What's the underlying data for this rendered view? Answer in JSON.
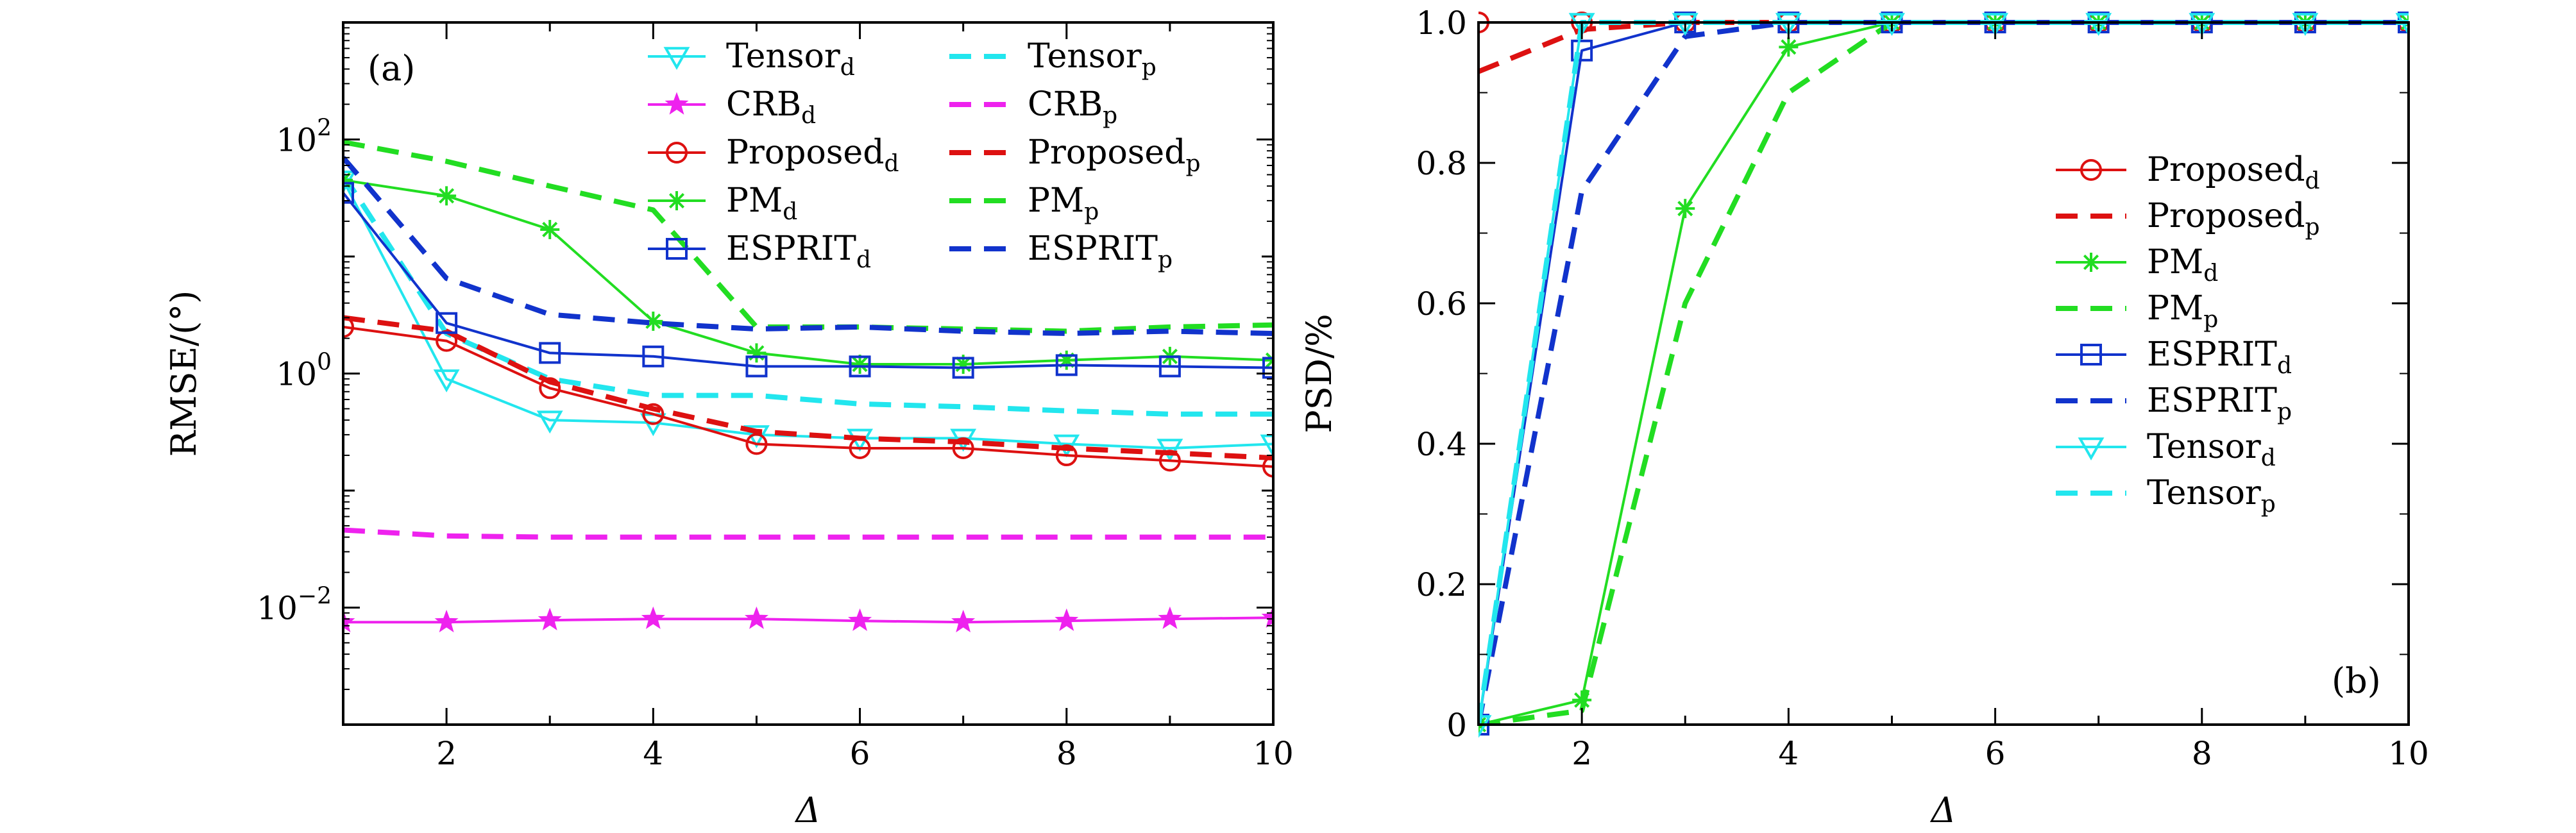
{
  "chart_data": [
    {
      "type": "line",
      "panel_label": "(a)",
      "xlabel": "Δ",
      "ylabel": "RMSE/(°)",
      "xlim": [
        1,
        10
      ],
      "ylim": [
        0.001,
        1000
      ],
      "yscale": "log",
      "x_ticks": [
        2,
        4,
        6,
        8,
        10
      ],
      "y_ticks": [
        {
          "value": 0.01,
          "base": "10",
          "exp": "−2"
        },
        {
          "value": 1,
          "base": "10",
          "exp": "0"
        },
        {
          "value": 100,
          "base": "10",
          "exp": "2"
        }
      ],
      "legend_position": "top-right",
      "legend_layout": "two-columns",
      "series": [
        {
          "name": "Tensor",
          "sub": "d",
          "color": "#22e6ee",
          "style": "solid",
          "marker": "triangle-down",
          "x": [
            1,
            2,
            3,
            4,
            5,
            6,
            7,
            8,
            9,
            10
          ],
          "y": [
            45,
            0.9,
            0.4,
            0.38,
            0.3,
            0.28,
            0.28,
            0.25,
            0.23,
            0.25
          ]
        },
        {
          "name": "Tensor",
          "sub": "p",
          "color": "#22e6ee",
          "style": "dashed",
          "marker": "none",
          "x": [
            1,
            2,
            3,
            4,
            5,
            6,
            7,
            8,
            9,
            10
          ],
          "y": [
            50,
            2.2,
            0.9,
            0.65,
            0.65,
            0.55,
            0.52,
            0.48,
            0.45,
            0.45
          ]
        },
        {
          "name": "CRB",
          "sub": "d",
          "color": "#ee22ee",
          "style": "solid",
          "marker": "star",
          "x": [
            1,
            2,
            3,
            4,
            5,
            6,
            7,
            8,
            9,
            10
          ],
          "y": [
            0.0075,
            0.0075,
            0.0078,
            0.008,
            0.008,
            0.0077,
            0.0075,
            0.0077,
            0.008,
            0.0082
          ]
        },
        {
          "name": "CRB",
          "sub": "p",
          "color": "#ee22ee",
          "style": "dashed",
          "marker": "none",
          "x": [
            1,
            2,
            3,
            4,
            5,
            6,
            7,
            8,
            9,
            10
          ],
          "y": [
            0.046,
            0.041,
            0.04,
            0.04,
            0.04,
            0.04,
            0.04,
            0.04,
            0.04,
            0.04
          ]
        },
        {
          "name": "Proposed",
          "sub": "d",
          "color": "#dd1111",
          "style": "solid",
          "marker": "circle",
          "x": [
            1,
            2,
            3,
            4,
            5,
            6,
            7,
            8,
            9,
            10
          ],
          "y": [
            2.5,
            1.9,
            0.75,
            0.45,
            0.25,
            0.23,
            0.23,
            0.2,
            0.18,
            0.16
          ]
        },
        {
          "name": "Proposed",
          "sub": "p",
          "color": "#dd1111",
          "style": "dashed",
          "marker": "none",
          "x": [
            1,
            2,
            3,
            4,
            5,
            6,
            7,
            8,
            9,
            10
          ],
          "y": [
            3.0,
            2.3,
            0.85,
            0.5,
            0.32,
            0.28,
            0.26,
            0.23,
            0.21,
            0.19
          ]
        },
        {
          "name": "PM",
          "sub": "d",
          "color": "#22dd22",
          "style": "solid",
          "marker": "asterisk",
          "x": [
            1,
            2,
            3,
            4,
            5,
            6,
            7,
            8,
            9,
            10
          ],
          "y": [
            45,
            33,
            17,
            2.8,
            1.5,
            1.2,
            1.2,
            1.3,
            1.4,
            1.3
          ]
        },
        {
          "name": "PM",
          "sub": "p",
          "color": "#22dd22",
          "style": "dashed",
          "marker": "none",
          "x": [
            1,
            2,
            3,
            4,
            5,
            6,
            7,
            8,
            9,
            10
          ],
          "y": [
            95,
            65,
            40,
            25,
            2.5,
            2.5,
            2.4,
            2.3,
            2.5,
            2.6
          ]
        },
        {
          "name": "ESPRIT",
          "sub": "d",
          "color": "#1133cc",
          "style": "solid",
          "marker": "square",
          "x": [
            1,
            2,
            3,
            4,
            5,
            6,
            7,
            8,
            9,
            10
          ],
          "y": [
            35,
            2.7,
            1.5,
            1.4,
            1.15,
            1.15,
            1.12,
            1.18,
            1.15,
            1.12
          ]
        },
        {
          "name": "ESPRIT",
          "sub": "p",
          "color": "#1133cc",
          "style": "dashed",
          "marker": "none",
          "x": [
            1,
            2,
            3,
            4,
            5,
            6,
            7,
            8,
            9,
            10
          ],
          "y": [
            70,
            6.5,
            3.2,
            2.7,
            2.4,
            2.5,
            2.3,
            2.2,
            2.3,
            2.2
          ]
        }
      ]
    },
    {
      "type": "line",
      "panel_label": "(b)",
      "xlabel": "Δ",
      "ylabel": "PSD/%",
      "xlim": [
        1,
        10
      ],
      "ylim": [
        0,
        1.0
      ],
      "yscale": "linear",
      "x_ticks": [
        2,
        4,
        6,
        8,
        10
      ],
      "y_ticks": [
        0,
        0.2,
        0.4,
        0.6,
        0.8,
        1.0
      ],
      "y_tick_labels": [
        "0",
        "0.2",
        "0.4",
        "0.6",
        "0.8",
        "1.0"
      ],
      "legend_position": "center-right",
      "legend_layout": "one-column",
      "series": [
        {
          "name": "Proposed",
          "sub": "d",
          "color": "#dd1111",
          "style": "solid",
          "marker": "circle",
          "x": [
            1,
            2,
            3,
            4,
            5,
            6,
            7,
            8,
            9,
            10
          ],
          "y": [
            1,
            1,
            1,
            1,
            1,
            1,
            1,
            1,
            1,
            1
          ]
        },
        {
          "name": "Proposed",
          "sub": "p",
          "color": "#dd1111",
          "style": "dashed",
          "marker": "none",
          "x": [
            1,
            2,
            3,
            4,
            5,
            6,
            7,
            8,
            9,
            10
          ],
          "y": [
            0.93,
            0.99,
            1,
            1,
            1,
            1,
            1,
            1,
            1,
            1
          ]
        },
        {
          "name": "PM",
          "sub": "d",
          "color": "#22dd22",
          "style": "solid",
          "marker": "asterisk",
          "x": [
            1,
            2,
            3,
            4,
            5,
            6,
            7,
            8,
            9,
            10
          ],
          "y": [
            0,
            0.035,
            0.735,
            0.965,
            1,
            1,
            1,
            1,
            1,
            1
          ]
        },
        {
          "name": "PM",
          "sub": "p",
          "color": "#22dd22",
          "style": "dashed",
          "marker": "none",
          "x": [
            1,
            2,
            3,
            4,
            5,
            6,
            7,
            8,
            9,
            10
          ],
          "y": [
            0,
            0.02,
            0.6,
            0.9,
            1,
            1,
            1,
            1,
            1,
            1
          ]
        },
        {
          "name": "ESPRIT",
          "sub": "d",
          "color": "#1133cc",
          "style": "solid",
          "marker": "square",
          "x": [
            1,
            2,
            3,
            4,
            5,
            6,
            7,
            8,
            9,
            10
          ],
          "y": [
            0,
            0.96,
            1,
            1,
            1,
            1,
            1,
            1,
            1,
            1
          ]
        },
        {
          "name": "ESPRIT",
          "sub": "p",
          "color": "#1133cc",
          "style": "dashed",
          "marker": "none",
          "x": [
            1,
            2,
            3,
            4,
            5,
            6,
            7,
            8,
            9,
            10
          ],
          "y": [
            0,
            0.76,
            0.98,
            1,
            1,
            1,
            1,
            1,
            1,
            1
          ]
        },
        {
          "name": "Tensor",
          "sub": "d",
          "color": "#22e6ee",
          "style": "solid",
          "marker": "triangle-down",
          "x": [
            1,
            2,
            3,
            4,
            5,
            6,
            7,
            8,
            9,
            10
          ],
          "y": [
            0,
            1,
            1,
            1,
            1,
            1,
            1,
            1,
            1,
            1
          ]
        },
        {
          "name": "Tensor",
          "sub": "p",
          "color": "#22e6ee",
          "style": "dashed",
          "marker": "none",
          "x": [
            1,
            2,
            3,
            4,
            5,
            6,
            7,
            8,
            9,
            10
          ],
          "y": [
            0,
            1,
            1,
            1,
            1,
            1,
            1,
            1,
            1,
            1
          ]
        }
      ]
    }
  ]
}
